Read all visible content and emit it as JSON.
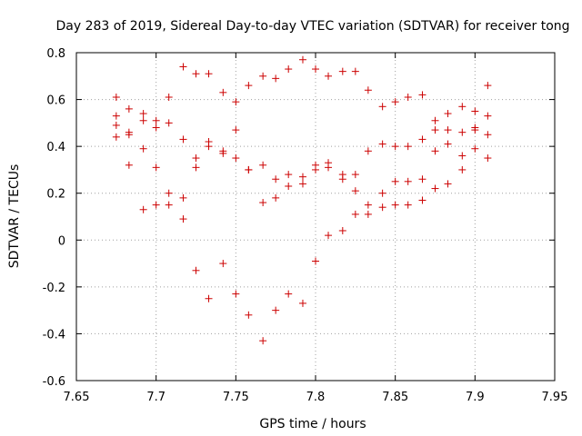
{
  "colors": {
    "points": "#cc0000",
    "grid": "#a0a0a0",
    "axis": "#000000",
    "background": "#ffffff"
  },
  "chart_data": {
    "type": "scatter",
    "title": "Day 283 of 2019, Sidereal Day-to-day VTEC variation (SDTVAR) for receiver tong",
    "xlabel": "GPS time / hours",
    "ylabel": "SDTVAR / TECUs",
    "xlim": [
      7.65,
      7.95
    ],
    "ylim": [
      -0.6,
      0.8
    ],
    "xticks": [
      "7.65",
      "7.7",
      "7.75",
      "7.8",
      "7.85",
      "7.9",
      "7.95"
    ],
    "yticks": [
      "-0.6",
      "-0.4",
      "-0.2",
      "0",
      "0.2",
      "0.4",
      "0.6",
      "0.8"
    ],
    "grid": true,
    "marker": "+",
    "series": [
      {
        "name": "SDTVAR",
        "points": [
          [
            7.675,
            0.61
          ],
          [
            7.675,
            0.53
          ],
          [
            7.675,
            0.49
          ],
          [
            7.675,
            0.44
          ],
          [
            7.683,
            0.56
          ],
          [
            7.683,
            0.46
          ],
          [
            7.683,
            0.45
          ],
          [
            7.683,
            0.32
          ],
          [
            7.692,
            0.54
          ],
          [
            7.692,
            0.51
          ],
          [
            7.692,
            0.39
          ],
          [
            7.692,
            0.13
          ],
          [
            7.7,
            0.51
          ],
          [
            7.7,
            0.48
          ],
          [
            7.7,
            0.31
          ],
          [
            7.7,
            0.15
          ],
          [
            7.708,
            0.61
          ],
          [
            7.708,
            0.5
          ],
          [
            7.708,
            0.2
          ],
          [
            7.708,
            0.15
          ],
          [
            7.717,
            0.74
          ],
          [
            7.717,
            0.43
          ],
          [
            7.717,
            0.18
          ],
          [
            7.717,
            0.09
          ],
          [
            7.725,
            0.71
          ],
          [
            7.725,
            0.35
          ],
          [
            7.725,
            0.31
          ],
          [
            7.725,
            -0.13
          ],
          [
            7.733,
            0.71
          ],
          [
            7.733,
            0.42
          ],
          [
            7.733,
            0.4
          ],
          [
            7.733,
            -0.25
          ],
          [
            7.742,
            0.63
          ],
          [
            7.742,
            0.38
          ],
          [
            7.742,
            0.37
          ],
          [
            7.742,
            -0.1
          ],
          [
            7.75,
            0.59
          ],
          [
            7.75,
            0.47
          ],
          [
            7.75,
            0.35
          ],
          [
            7.75,
            -0.23
          ],
          [
            7.758,
            0.66
          ],
          [
            7.758,
            0.3
          ],
          [
            7.758,
            0.3
          ],
          [
            7.758,
            -0.32
          ],
          [
            7.767,
            0.7
          ],
          [
            7.767,
            0.32
          ],
          [
            7.767,
            0.16
          ],
          [
            7.767,
            -0.43
          ],
          [
            7.775,
            0.69
          ],
          [
            7.775,
            0.26
          ],
          [
            7.775,
            0.18
          ],
          [
            7.775,
            -0.3
          ],
          [
            7.783,
            0.73
          ],
          [
            7.783,
            0.28
          ],
          [
            7.783,
            0.23
          ],
          [
            7.783,
            -0.23
          ],
          [
            7.792,
            0.77
          ],
          [
            7.792,
            0.27
          ],
          [
            7.792,
            0.24
          ],
          [
            7.792,
            -0.27
          ],
          [
            7.8,
            0.73
          ],
          [
            7.8,
            0.32
          ],
          [
            7.8,
            0.3
          ],
          [
            7.8,
            -0.09
          ],
          [
            7.808,
            0.7
          ],
          [
            7.808,
            0.33
          ],
          [
            7.808,
            0.31
          ],
          [
            7.808,
            0.02
          ],
          [
            7.817,
            0.72
          ],
          [
            7.817,
            0.28
          ],
          [
            7.817,
            0.26
          ],
          [
            7.817,
            0.04
          ],
          [
            7.825,
            0.72
          ],
          [
            7.825,
            0.28
          ],
          [
            7.825,
            0.21
          ],
          [
            7.825,
            0.11
          ],
          [
            7.833,
            0.64
          ],
          [
            7.833,
            0.38
          ],
          [
            7.833,
            0.15
          ],
          [
            7.833,
            0.11
          ],
          [
            7.842,
            0.57
          ],
          [
            7.842,
            0.41
          ],
          [
            7.842,
            0.2
          ],
          [
            7.842,
            0.14
          ],
          [
            7.85,
            0.59
          ],
          [
            7.85,
            0.4
          ],
          [
            7.85,
            0.25
          ],
          [
            7.85,
            0.15
          ],
          [
            7.858,
            0.61
          ],
          [
            7.858,
            0.4
          ],
          [
            7.858,
            0.25
          ],
          [
            7.858,
            0.15
          ],
          [
            7.867,
            0.62
          ],
          [
            7.867,
            0.43
          ],
          [
            7.867,
            0.26
          ],
          [
            7.867,
            0.17
          ],
          [
            7.875,
            0.51
          ],
          [
            7.875,
            0.47
          ],
          [
            7.875,
            0.38
          ],
          [
            7.875,
            0.22
          ],
          [
            7.883,
            0.54
          ],
          [
            7.883,
            0.47
          ],
          [
            7.883,
            0.41
          ],
          [
            7.883,
            0.24
          ],
          [
            7.892,
            0.57
          ],
          [
            7.892,
            0.46
          ],
          [
            7.892,
            0.36
          ],
          [
            7.892,
            0.3
          ],
          [
            7.9,
            0.55
          ],
          [
            7.9,
            0.48
          ],
          [
            7.9,
            0.47
          ],
          [
            7.9,
            0.39
          ],
          [
            7.908,
            0.66
          ],
          [
            7.908,
            0.53
          ],
          [
            7.908,
            0.45
          ],
          [
            7.908,
            0.35
          ]
        ]
      }
    ]
  }
}
